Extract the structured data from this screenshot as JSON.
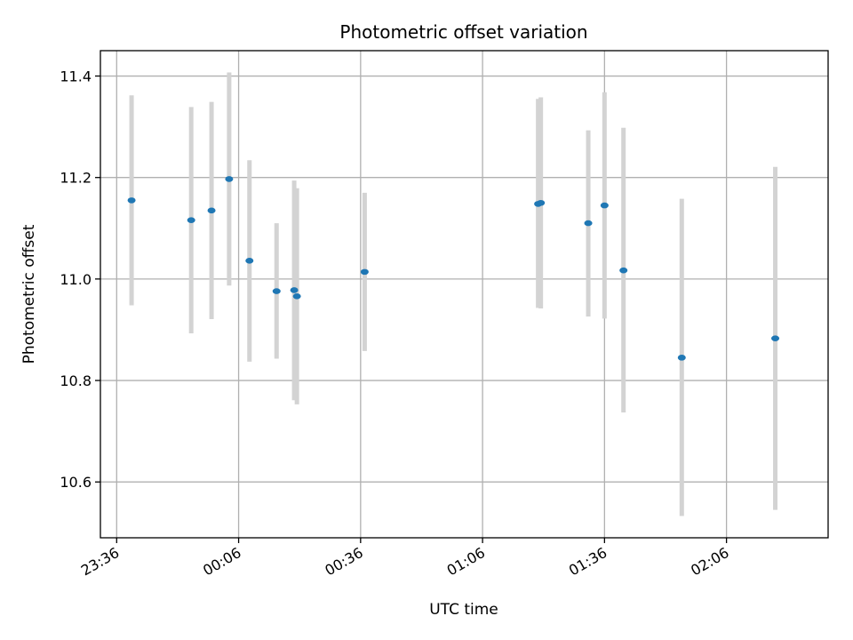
{
  "chart_data": {
    "type": "scatter",
    "title": "Photometric offset variation",
    "xlabel": "UTC time",
    "ylabel": "Photometric offset",
    "x_axis": {
      "kind": "time",
      "range": [
        "23:32",
        "02:31"
      ],
      "ticks": [
        "23:36",
        "00:06",
        "00:36",
        "01:06",
        "01:36",
        "02:06"
      ]
    },
    "y_axis": {
      "range": [
        10.49,
        11.45
      ],
      "ticks": [
        "10.6",
        "10.8",
        "11.0",
        "11.2",
        "11.4"
      ]
    },
    "grid": true,
    "colors": {
      "point": "#1f77b4",
      "errorbar": "#d3d3d3",
      "grid": "#b0b0b0",
      "axis": "#000000"
    },
    "points": [
      {
        "t": "23:39:40",
        "y": 11.155,
        "low": 10.948,
        "high": 11.362
      },
      {
        "t": "23:54:20",
        "y": 11.116,
        "low": 10.893,
        "high": 11.339
      },
      {
        "t": "23:59:20",
        "y": 11.135,
        "low": 10.921,
        "high": 11.349
      },
      {
        "t": "00:03:40",
        "y": 11.197,
        "low": 10.987,
        "high": 11.407
      },
      {
        "t": "00:08:40",
        "y": 11.036,
        "low": 10.837,
        "high": 11.234
      },
      {
        "t": "00:15:20",
        "y": 10.976,
        "low": 10.843,
        "high": 11.11
      },
      {
        "t": "00:19:40",
        "y": 10.978,
        "low": 10.761,
        "high": 11.194
      },
      {
        "t": "00:20:20",
        "y": 10.966,
        "low": 10.753,
        "high": 11.179
      },
      {
        "t": "00:37:00",
        "y": 11.014,
        "low": 10.858,
        "high": 11.17
      },
      {
        "t": "01:19:40",
        "y": 11.148,
        "low": 10.943,
        "high": 11.355
      },
      {
        "t": "01:20:20",
        "y": 11.15,
        "low": 10.942,
        "high": 11.358
      },
      {
        "t": "01:32:00",
        "y": 11.11,
        "low": 10.926,
        "high": 11.293
      },
      {
        "t": "01:36:00",
        "y": 11.145,
        "low": 10.922,
        "high": 11.368
      },
      {
        "t": "01:40:40",
        "y": 11.017,
        "low": 10.737,
        "high": 11.298
      },
      {
        "t": "01:55:00",
        "y": 10.845,
        "low": 10.533,
        "high": 11.158
      },
      {
        "t": "02:18:00",
        "y": 10.883,
        "low": 10.545,
        "high": 11.221
      }
    ]
  }
}
